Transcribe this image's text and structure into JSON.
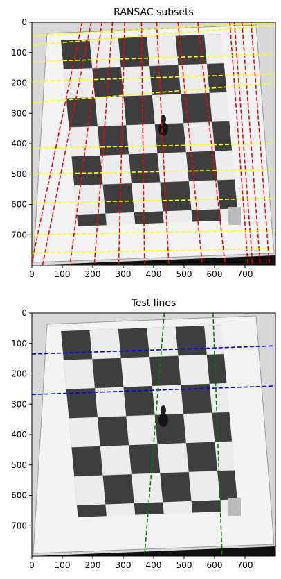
{
  "chart_data": [
    {
      "type": "image-with-lines",
      "title": "RANSAC subsets",
      "xlim": [
        0,
        800
      ],
      "ylim": [
        800,
        0
      ],
      "xticks": [
        0,
        100,
        200,
        300,
        400,
        500,
        600,
        700
      ],
      "yticks": [
        0,
        100,
        200,
        300,
        400,
        500,
        600,
        700
      ],
      "image": "grayscale photo of chessboard mat with a black chess piece",
      "line_style": "dashed",
      "series": [
        {
          "color": "#ff0000",
          "lines": [
            [
              [
                165,
                0
              ],
              [
                0,
                790
              ]
            ],
            [
              [
                195,
                0
              ],
              [
                35,
                800
              ]
            ],
            [
              [
                230,
                0
              ],
              [
                125,
                800
              ]
            ],
            [
              [
                265,
                0
              ],
              [
                205,
                800
              ]
            ],
            [
              [
                305,
                0
              ],
              [
                285,
                800
              ]
            ],
            [
              [
                360,
                0
              ],
              [
                370,
                800
              ]
            ],
            [
              [
                410,
                0
              ],
              [
                450,
                800
              ]
            ],
            [
              [
                480,
                0
              ],
              [
                560,
                800
              ]
            ],
            [
              [
                545,
                0
              ],
              [
                635,
                800
              ]
            ],
            [
              [
                650,
                0
              ],
              [
                710,
                800
              ]
            ],
            [
              [
                665,
                0
              ],
              [
                725,
                800
              ]
            ],
            [
              [
                690,
                0
              ],
              [
                750,
                800
              ]
            ],
            [
              [
                720,
                0
              ],
              [
                780,
                800
              ]
            ]
          ]
        },
        {
          "color": "#ffff00",
          "lines": [
            [
              [
                0,
                45
              ],
              [
                800,
                0
              ]
            ],
            [
              [
                0,
                75
              ],
              [
                800,
                10
              ]
            ],
            [
              [
                0,
                130
              ],
              [
                800,
                105
              ]
            ],
            [
              [
                0,
                195
              ],
              [
                800,
                170
              ]
            ],
            [
              [
                0,
                265
              ],
              [
                800,
                200
              ]
            ],
            [
              [
                0,
                415
              ],
              [
                800,
                400
              ]
            ],
            [
              [
                0,
                500
              ],
              [
                800,
                485
              ]
            ],
            [
              [
                0,
                595
              ],
              [
                800,
                580
              ]
            ],
            [
              [
                0,
                700
              ],
              [
                800,
                685
              ]
            ],
            [
              [
                0,
                760
              ],
              [
                800,
                745
              ]
            ]
          ]
        }
      ]
    },
    {
      "type": "image-with-lines",
      "title": "Test lines",
      "xlim": [
        0,
        800
      ],
      "ylim": [
        800,
        0
      ],
      "xticks": [
        0,
        100,
        200,
        300,
        400,
        500,
        600,
        700
      ],
      "yticks": [
        0,
        100,
        200,
        300,
        400,
        500,
        600,
        700
      ],
      "image": "grayscale photo of chessboard mat with a black chess piece",
      "line_style": "dashed",
      "series": [
        {
          "color": "#0000ff",
          "lines": [
            [
              [
                0,
                135
              ],
              [
                800,
                108
              ]
            ],
            [
              [
                0,
                268
              ],
              [
                800,
                240
              ]
            ]
          ]
        },
        {
          "color": "#008000",
          "lines": [
            [
              [
                435,
                0
              ],
              [
                370,
                800
              ]
            ],
            [
              [
                595,
                0
              ],
              [
                625,
                800
              ]
            ]
          ]
        }
      ]
    }
  ]
}
